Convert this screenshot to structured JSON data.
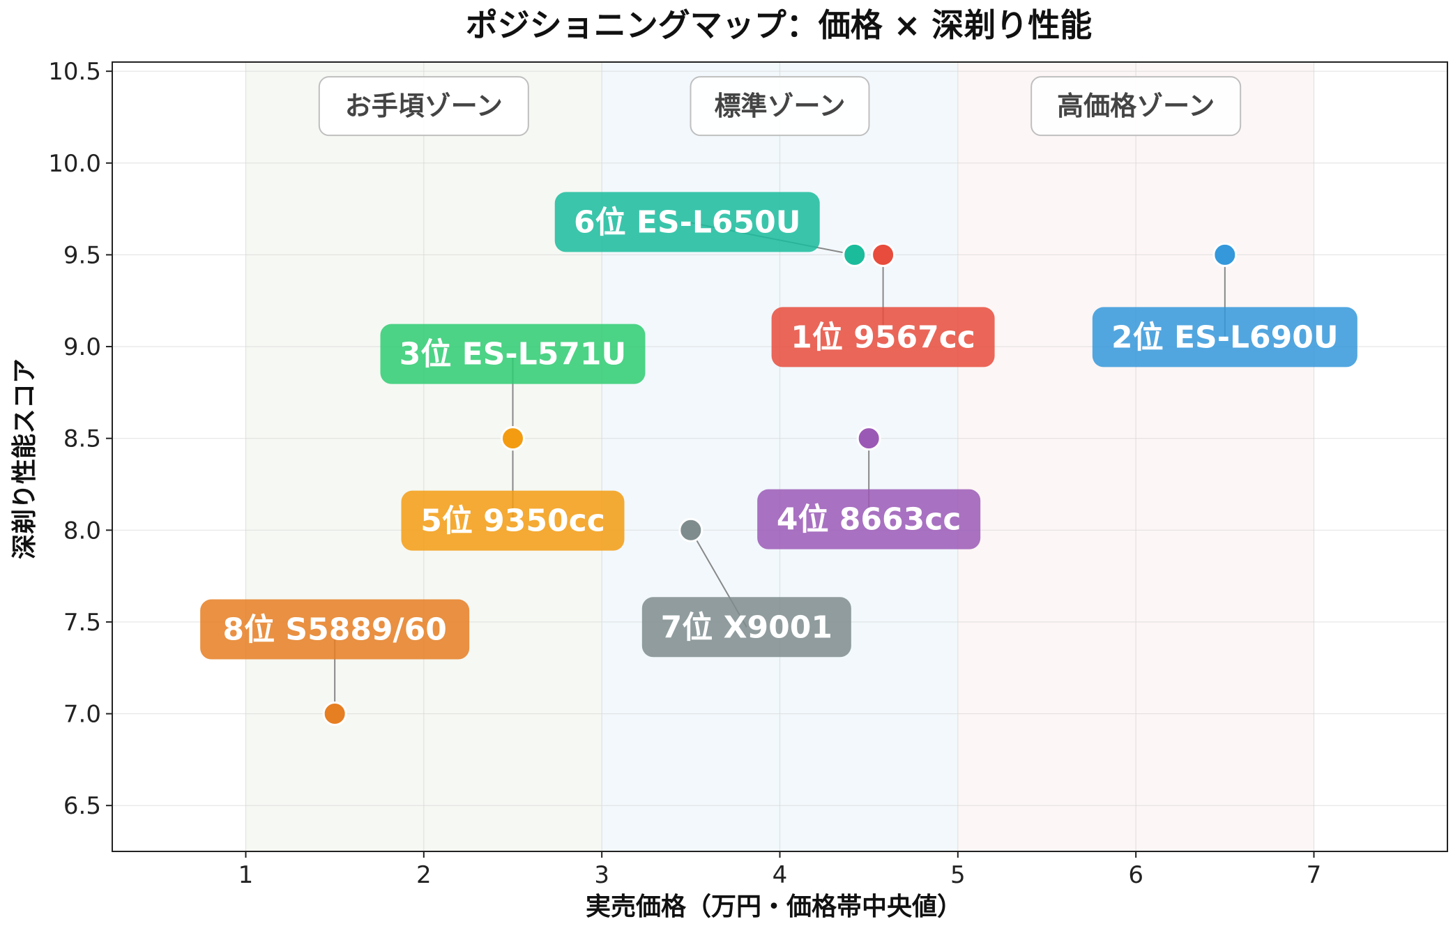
{
  "chart_data": {
    "type": "scatter",
    "title": "ポジショニングマップ：価格 × 深剃り性能",
    "xlabel": "実売価格（万円・価格帯中央値）",
    "ylabel": "深剃り性能スコア",
    "xlim": [
      0.25,
      7.75
    ],
    "ylim": [
      6.25,
      10.55
    ],
    "xticks": [
      1,
      2,
      3,
      4,
      5,
      6,
      7
    ],
    "xtick_labels": [
      "1",
      "2",
      "3",
      "4",
      "5",
      "6",
      "7"
    ],
    "yticks": [
      6.5,
      7.0,
      7.5,
      8.0,
      8.5,
      9.0,
      9.5,
      10.0,
      10.5
    ],
    "ytick_labels": [
      "6.5",
      "7.0",
      "7.5",
      "8.0",
      "8.5",
      "9.0",
      "9.5",
      "10.0",
      "10.5"
    ],
    "grid": true,
    "zones": [
      {
        "label": "お手頃ゾーン",
        "x_range": [
          1,
          3
        ],
        "color": "#eef2ea"
      },
      {
        "label": "標準ゾーン",
        "x_range": [
          3,
          5
        ],
        "color": "#e8f2fa"
      },
      {
        "label": "高価格ゾーン",
        "x_range": [
          5,
          7
        ],
        "color": "#fbefef"
      }
    ],
    "points": [
      {
        "rank_label": "1位 9567cc",
        "x": 4.58,
        "y": 9.5,
        "color": "#e74c3c"
      },
      {
        "rank_label": "2位 ES-L690U",
        "x": 6.5,
        "y": 9.5,
        "color": "#3498db"
      },
      {
        "rank_label": "3位 ES-L571U",
        "x": 2.5,
        "y": 8.5,
        "color": "#2ecc71"
      },
      {
        "rank_label": "4位 8663cc",
        "x": 4.5,
        "y": 8.5,
        "color": "#9b59b6"
      },
      {
        "rank_label": "5位 9350cc",
        "x": 2.5,
        "y": 8.5,
        "color": "#f39c12"
      },
      {
        "rank_label": "6位 ES-L650U",
        "x": 4.42,
        "y": 9.5,
        "color": "#1abc9c"
      },
      {
        "rank_label": "7位 X9001",
        "x": 3.5,
        "y": 8.0,
        "color": "#7f8c8d"
      },
      {
        "rank_label": "8位 S5889/60",
        "x": 1.5,
        "y": 7.0,
        "color": "#e67e22"
      }
    ]
  }
}
